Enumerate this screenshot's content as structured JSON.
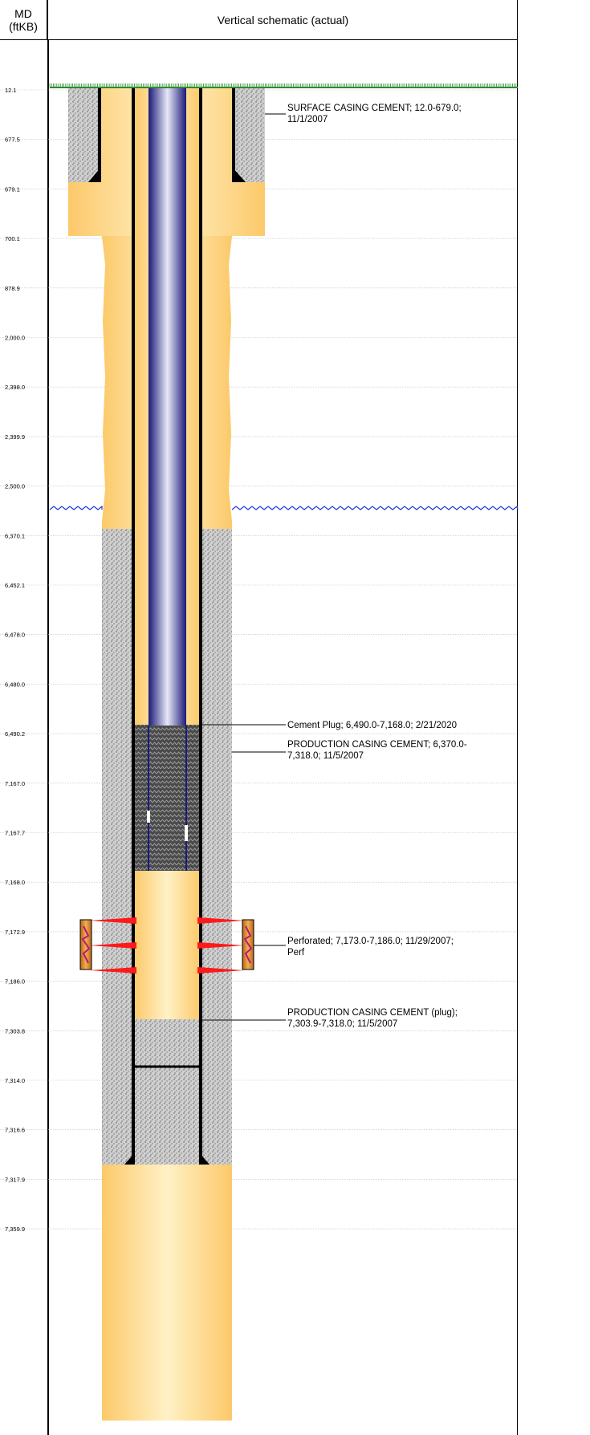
{
  "header": {
    "md_line1": "MD",
    "md_line2": "(ftKB)",
    "schematic_title": "Vertical schematic (actual)"
  },
  "depths": [
    "12.1",
    "677.5",
    "679.1",
    "700.1",
    "878.9",
    "2,000.0",
    "2,398.0",
    "2,399.9",
    "2,500.0",
    "6,370.1",
    "6,452.1",
    "6,478.0",
    "6,480.0",
    "6,490.2",
    "7,167.0",
    "7,167.7",
    "7,168.0",
    "7,172.9",
    "7,186.0",
    "7,303.8",
    "7,314.0",
    "7,316.6",
    "7,317.9",
    "7,359.9"
  ],
  "annotations": [
    {
      "lines": [
        "SURFACE CASING CEMENT; 12.0-679.0;",
        "11/1/2007"
      ]
    },
    {
      "lines": [
        "Cement Plug; 6,490.0-7,168.0; 2/21/2020"
      ]
    },
    {
      "lines": [
        "PRODUCTION CASING CEMENT; 6,370.0-",
        "7,318.0; 11/5/2007"
      ]
    },
    {
      "lines": [
        "Perforated; 7,173.0-7,186.0; 11/29/2007;",
        "Perf"
      ]
    },
    {
      "lines": [
        "PRODUCTION CASING CEMENT (plug);",
        "7,303.9-7,318.0; 11/5/2007"
      ]
    }
  ],
  "colors": {
    "formation": "#fcd58a",
    "formation_light": "#fff4d2",
    "cement": "#c8c8c8",
    "tubing_dark": "#1a1a7a",
    "tubing_light": "#d8d8f0",
    "plug_dark": "#3a3a3a",
    "ground": "#2e8b2e",
    "break_line": "#1a3ad6",
    "perf_red": "#ff1a1a",
    "gun_orange": "#d88a2a"
  }
}
